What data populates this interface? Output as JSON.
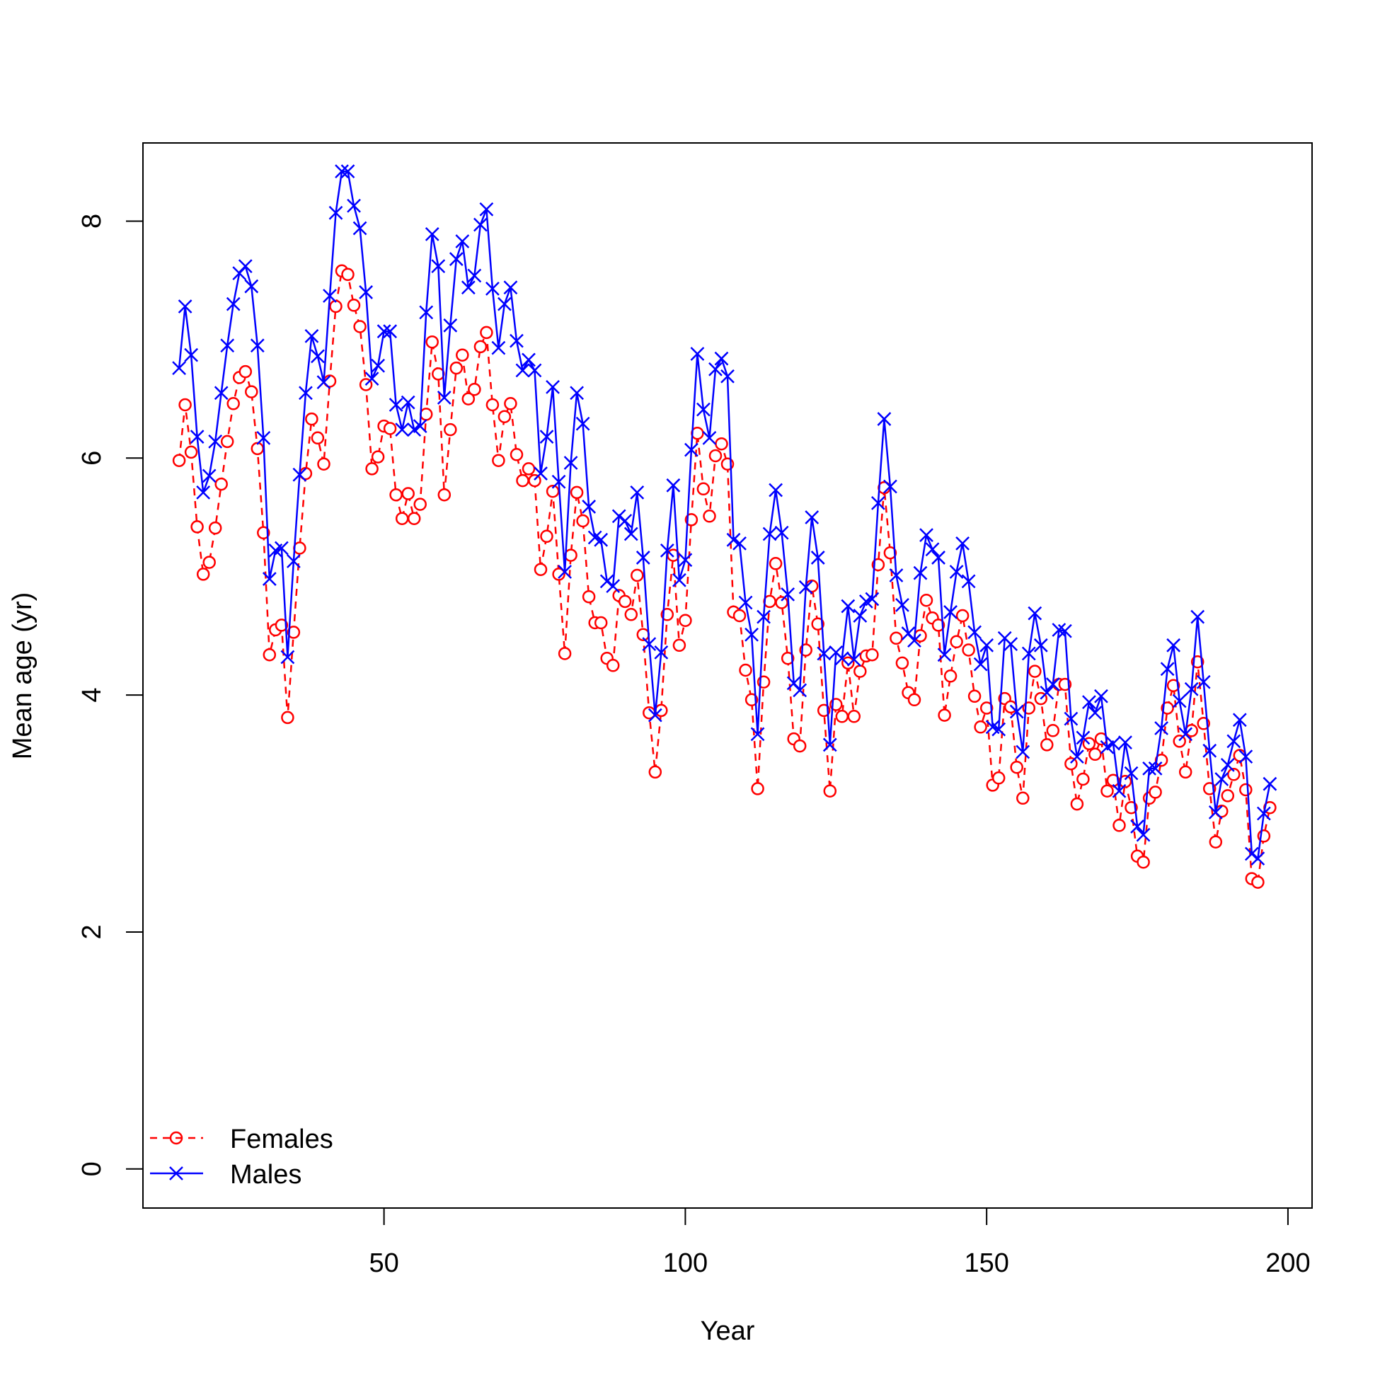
{
  "chart_data": {
    "type": "line",
    "xlabel": "Year",
    "ylabel": "Mean age (yr)",
    "xlim": [
      10,
      204
    ],
    "ylim": [
      -0.33,
      8.66
    ],
    "xticks": [
      50,
      100,
      150,
      200
    ],
    "yticks": [
      0,
      2,
      4,
      6,
      8
    ],
    "grid": false,
    "legend_position": "bottom-left",
    "x": [
      16,
      17,
      18,
      19,
      20,
      21,
      22,
      23,
      24,
      25,
      26,
      27,
      28,
      29,
      30,
      31,
      32,
      33,
      34,
      35,
      36,
      37,
      38,
      39,
      40,
      41,
      42,
      43,
      44,
      45,
      46,
      47,
      48,
      49,
      50,
      51,
      52,
      53,
      54,
      55,
      56,
      57,
      58,
      59,
      60,
      61,
      62,
      63,
      64,
      65,
      66,
      67,
      68,
      69,
      70,
      71,
      72,
      73,
      74,
      75,
      76,
      77,
      78,
      79,
      80,
      81,
      82,
      83,
      84,
      85,
      86,
      87,
      88,
      89,
      90,
      91,
      92,
      93,
      94,
      95,
      96,
      97,
      98,
      99,
      100,
      101,
      102,
      103,
      104,
      105,
      106,
      107,
      108,
      109,
      110,
      111,
      112,
      113,
      114,
      115,
      116,
      117,
      118,
      119,
      120,
      121,
      122,
      123,
      124,
      125,
      126,
      127,
      128,
      129,
      130,
      131,
      132,
      133,
      134,
      135,
      136,
      137,
      138,
      139,
      140,
      141,
      142,
      143,
      144,
      145,
      146,
      147,
      148,
      149,
      150,
      151,
      152,
      153,
      154,
      155,
      156,
      157,
      158,
      159,
      160,
      161,
      162,
      163,
      164,
      165,
      166,
      167,
      168,
      169,
      170,
      171,
      172,
      173,
      174,
      175,
      176,
      177,
      178,
      179,
      180,
      181,
      182,
      183,
      184,
      185,
      186,
      187,
      188,
      189,
      190,
      191,
      192,
      193,
      194,
      195,
      196,
      197
    ],
    "series": [
      {
        "name": "Females",
        "color": "#ff0000",
        "line_style": "dashed",
        "marker": "circle",
        "values": [
          5.98,
          6.45,
          6.05,
          5.42,
          5.02,
          5.12,
          5.41,
          5.78,
          6.14,
          6.46,
          6.68,
          6.73,
          6.56,
          6.08,
          5.37,
          4.34,
          4.55,
          4.59,
          3.81,
          4.53,
          5.24,
          5.87,
          6.33,
          6.17,
          5.95,
          6.65,
          7.28,
          7.58,
          7.55,
          7.29,
          7.11,
          6.62,
          5.91,
          6.01,
          6.27,
          6.25,
          5.69,
          5.49,
          5.7,
          5.49,
          5.61,
          6.37,
          6.98,
          6.71,
          5.69,
          6.24,
          6.76,
          6.87,
          6.5,
          6.58,
          6.94,
          7.06,
          6.45,
          5.98,
          6.35,
          6.46,
          6.03,
          5.81,
          5.91,
          5.81,
          5.06,
          5.34,
          5.72,
          5.02,
          4.35,
          5.18,
          5.71,
          5.47,
          4.83,
          4.61,
          4.61,
          4.31,
          4.25,
          4.84,
          4.79,
          4.68,
          5.01,
          4.51,
          3.85,
          3.35,
          3.87,
          4.68,
          5.18,
          4.42,
          4.63,
          5.48,
          6.21,
          5.74,
          5.51,
          6.02,
          6.12,
          5.95,
          4.7,
          4.67,
          4.21,
          3.96,
          3.21,
          4.11,
          4.79,
          5.11,
          4.78,
          4.31,
          3.63,
          3.57,
          4.38,
          4.92,
          4.6,
          3.87,
          3.19,
          3.92,
          3.82,
          4.27,
          3.82,
          4.2,
          4.33,
          4.34,
          5.1,
          5.75,
          5.2,
          4.48,
          4.27,
          4.02,
          3.96,
          4.5,
          4.8,
          4.65,
          4.59,
          3.83,
          4.16,
          4.45,
          4.67,
          4.38,
          3.99,
          3.73,
          3.89,
          3.24,
          3.3,
          3.97,
          3.9,
          3.39,
          3.13,
          3.89,
          4.2,
          3.97,
          3.58,
          3.7,
          4.09,
          4.09,
          3.42,
          3.08,
          3.29,
          3.59,
          3.5,
          3.63,
          3.19,
          3.28,
          2.9,
          3.27,
          3.05,
          2.64,
          2.59,
          3.13,
          3.18,
          3.45,
          3.89,
          4.08,
          3.61,
          3.35,
          3.7,
          4.28,
          3.76,
          3.21,
          2.76,
          3.02,
          3.15,
          3.33,
          3.49,
          3.2,
          2.45,
          2.42,
          2.81,
          3.05
        ]
      },
      {
        "name": "Males",
        "color": "#0000ff",
        "line_style": "solid",
        "marker": "x",
        "values": [
          6.76,
          7.28,
          6.87,
          6.18,
          5.71,
          5.85,
          6.14,
          6.55,
          6.95,
          7.3,
          7.56,
          7.62,
          7.45,
          6.95,
          6.17,
          4.98,
          5.22,
          5.24,
          4.32,
          5.13,
          5.86,
          6.55,
          7.03,
          6.86,
          6.64,
          7.37,
          8.07,
          8.42,
          8.42,
          8.13,
          7.94,
          7.4,
          6.67,
          6.78,
          7.07,
          7.07,
          6.45,
          6.24,
          6.47,
          6.24,
          6.27,
          7.23,
          7.89,
          7.62,
          6.51,
          7.12,
          7.68,
          7.83,
          7.44,
          7.54,
          7.97,
          8.1,
          7.43,
          6.93,
          7.3,
          7.44,
          6.99,
          6.74,
          6.83,
          6.74,
          5.87,
          6.18,
          6.6,
          5.8,
          5.04,
          5.96,
          6.55,
          6.29,
          5.59,
          5.33,
          5.31,
          4.96,
          4.92,
          5.51,
          5.47,
          5.36,
          5.71,
          5.16,
          4.43,
          3.83,
          4.36,
          5.22,
          5.77,
          4.97,
          5.14,
          6.07,
          6.88,
          6.41,
          6.17,
          6.75,
          6.84,
          6.69,
          5.31,
          5.28,
          4.78,
          4.51,
          3.67,
          4.66,
          5.36,
          5.73,
          5.37,
          4.85,
          4.1,
          4.04,
          4.91,
          5.5,
          5.16,
          4.35,
          3.58,
          4.36,
          4.31,
          4.75,
          4.3,
          4.67,
          4.79,
          4.81,
          5.62,
          6.33,
          5.76,
          5.01,
          4.76,
          4.52,
          4.46,
          5.03,
          5.35,
          5.23,
          5.16,
          4.34,
          4.7,
          5.04,
          5.28,
          4.96,
          4.53,
          4.26,
          4.42,
          3.73,
          3.71,
          4.48,
          4.43,
          3.86,
          3.52,
          4.35,
          4.69,
          4.42,
          4.02,
          4.09,
          4.55,
          4.54,
          3.8,
          3.48,
          3.64,
          3.94,
          3.85,
          3.99,
          3.56,
          3.59,
          3.19,
          3.6,
          3.34,
          2.89,
          2.82,
          3.38,
          3.38,
          3.72,
          4.22,
          4.42,
          3.95,
          3.67,
          4.05,
          4.66,
          4.11,
          3.53,
          3.01,
          3.29,
          3.41,
          3.61,
          3.79,
          3.48,
          2.66,
          2.62,
          3.0,
          3.25
        ]
      }
    ]
  }
}
